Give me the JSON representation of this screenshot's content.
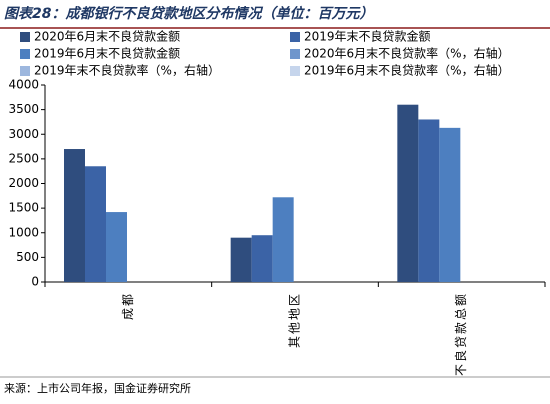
{
  "chart_data": {
    "type": "bar",
    "title": "图表28：成都银行不良贷款地区分布情况（单位：百万元）",
    "categories": [
      "成都",
      "其他地区",
      "不良贷款总额"
    ],
    "series": [
      {
        "name": "2020年6月末不良贷款金额",
        "color": "#2f4d7e",
        "values": [
          2700,
          900,
          3600
        ]
      },
      {
        "name": "2019年末不良贷款金额",
        "color": "#3b63a6",
        "values": [
          2350,
          950,
          3300
        ]
      },
      {
        "name": "2019年6月末不良贷款金额",
        "color": "#4d7fc0",
        "values": [
          1420,
          1720,
          3130
        ]
      },
      {
        "name": "2020年6月末不良贷款率（%，右轴）",
        "color": "#6f96cc",
        "values": [
          null,
          null,
          null
        ]
      },
      {
        "name": "2019年末不良贷款率（%，右轴）",
        "color": "#9db7de",
        "values": [
          null,
          null,
          null
        ]
      },
      {
        "name": "2019年6月末不良贷款率（%，右轴）",
        "color": "#c6d5ec",
        "values": [
          null,
          null,
          null
        ]
      }
    ],
    "ylim": [
      0,
      4000
    ],
    "yticks": [
      0,
      500,
      1000,
      1500,
      2000,
      2500,
      3000,
      3500,
      4000
    ],
    "source": "来源：上市公司年报，国金证券研究所"
  }
}
